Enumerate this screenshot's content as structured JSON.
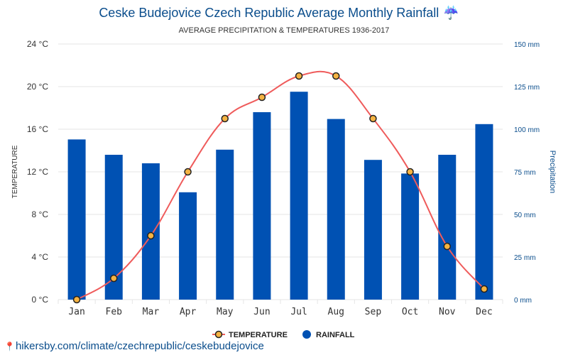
{
  "chart_data": {
    "type": "bar+line",
    "title": "Ceske Budejovice Czech Republic Average Monthly Rainfall",
    "title_icon": "umbrella-icon",
    "subtitle": "AVERAGE PRECIPITATION & TEMPERATURES 1936-2017",
    "categories": [
      "Jan",
      "Feb",
      "Mar",
      "Apr",
      "May",
      "Jun",
      "Jul",
      "Aug",
      "Sep",
      "Oct",
      "Nov",
      "Dec"
    ],
    "series": [
      {
        "name": "RAINFALL",
        "type": "bar",
        "axis": "right",
        "color": "#0051b3",
        "values": [
          94,
          85,
          80,
          63,
          88,
          110,
          122,
          106,
          82,
          74,
          85,
          103
        ]
      },
      {
        "name": "TEMPERATURE",
        "type": "line",
        "axis": "left",
        "color": "#ef5b5b",
        "marker_fill": "#f5b342",
        "values": [
          0,
          2,
          6,
          12,
          17,
          19,
          21,
          21,
          17,
          12,
          5,
          1
        ]
      }
    ],
    "y_left": {
      "label": "TEMPERATURE",
      "range": [
        0,
        24
      ],
      "ticks": [
        0,
        4,
        8,
        12,
        16,
        20,
        24
      ],
      "tick_labels": [
        "0 °C",
        "4 °C",
        "8 °C",
        "12 °C",
        "16 °C",
        "20 °C",
        "24 °C"
      ]
    },
    "y_right": {
      "label": "Precipitation",
      "range": [
        0,
        150
      ],
      "ticks": [
        0,
        25,
        50,
        75,
        100,
        125,
        150
      ],
      "tick_labels": [
        "0 mm",
        "25 mm",
        "50 mm",
        "75 mm",
        "100 mm",
        "125 mm",
        "150 mm"
      ]
    },
    "grid": true,
    "legend": {
      "placement": "bottom-center",
      "items": [
        {
          "label": "TEMPERATURE",
          "marker": "line-circle"
        },
        {
          "label": "RAINFALL",
          "marker": "circle"
        }
      ]
    }
  },
  "source": {
    "text": "hikersby.com/climate/czechrepublic/ceskebudejovice",
    "icon": "pin-icon"
  }
}
